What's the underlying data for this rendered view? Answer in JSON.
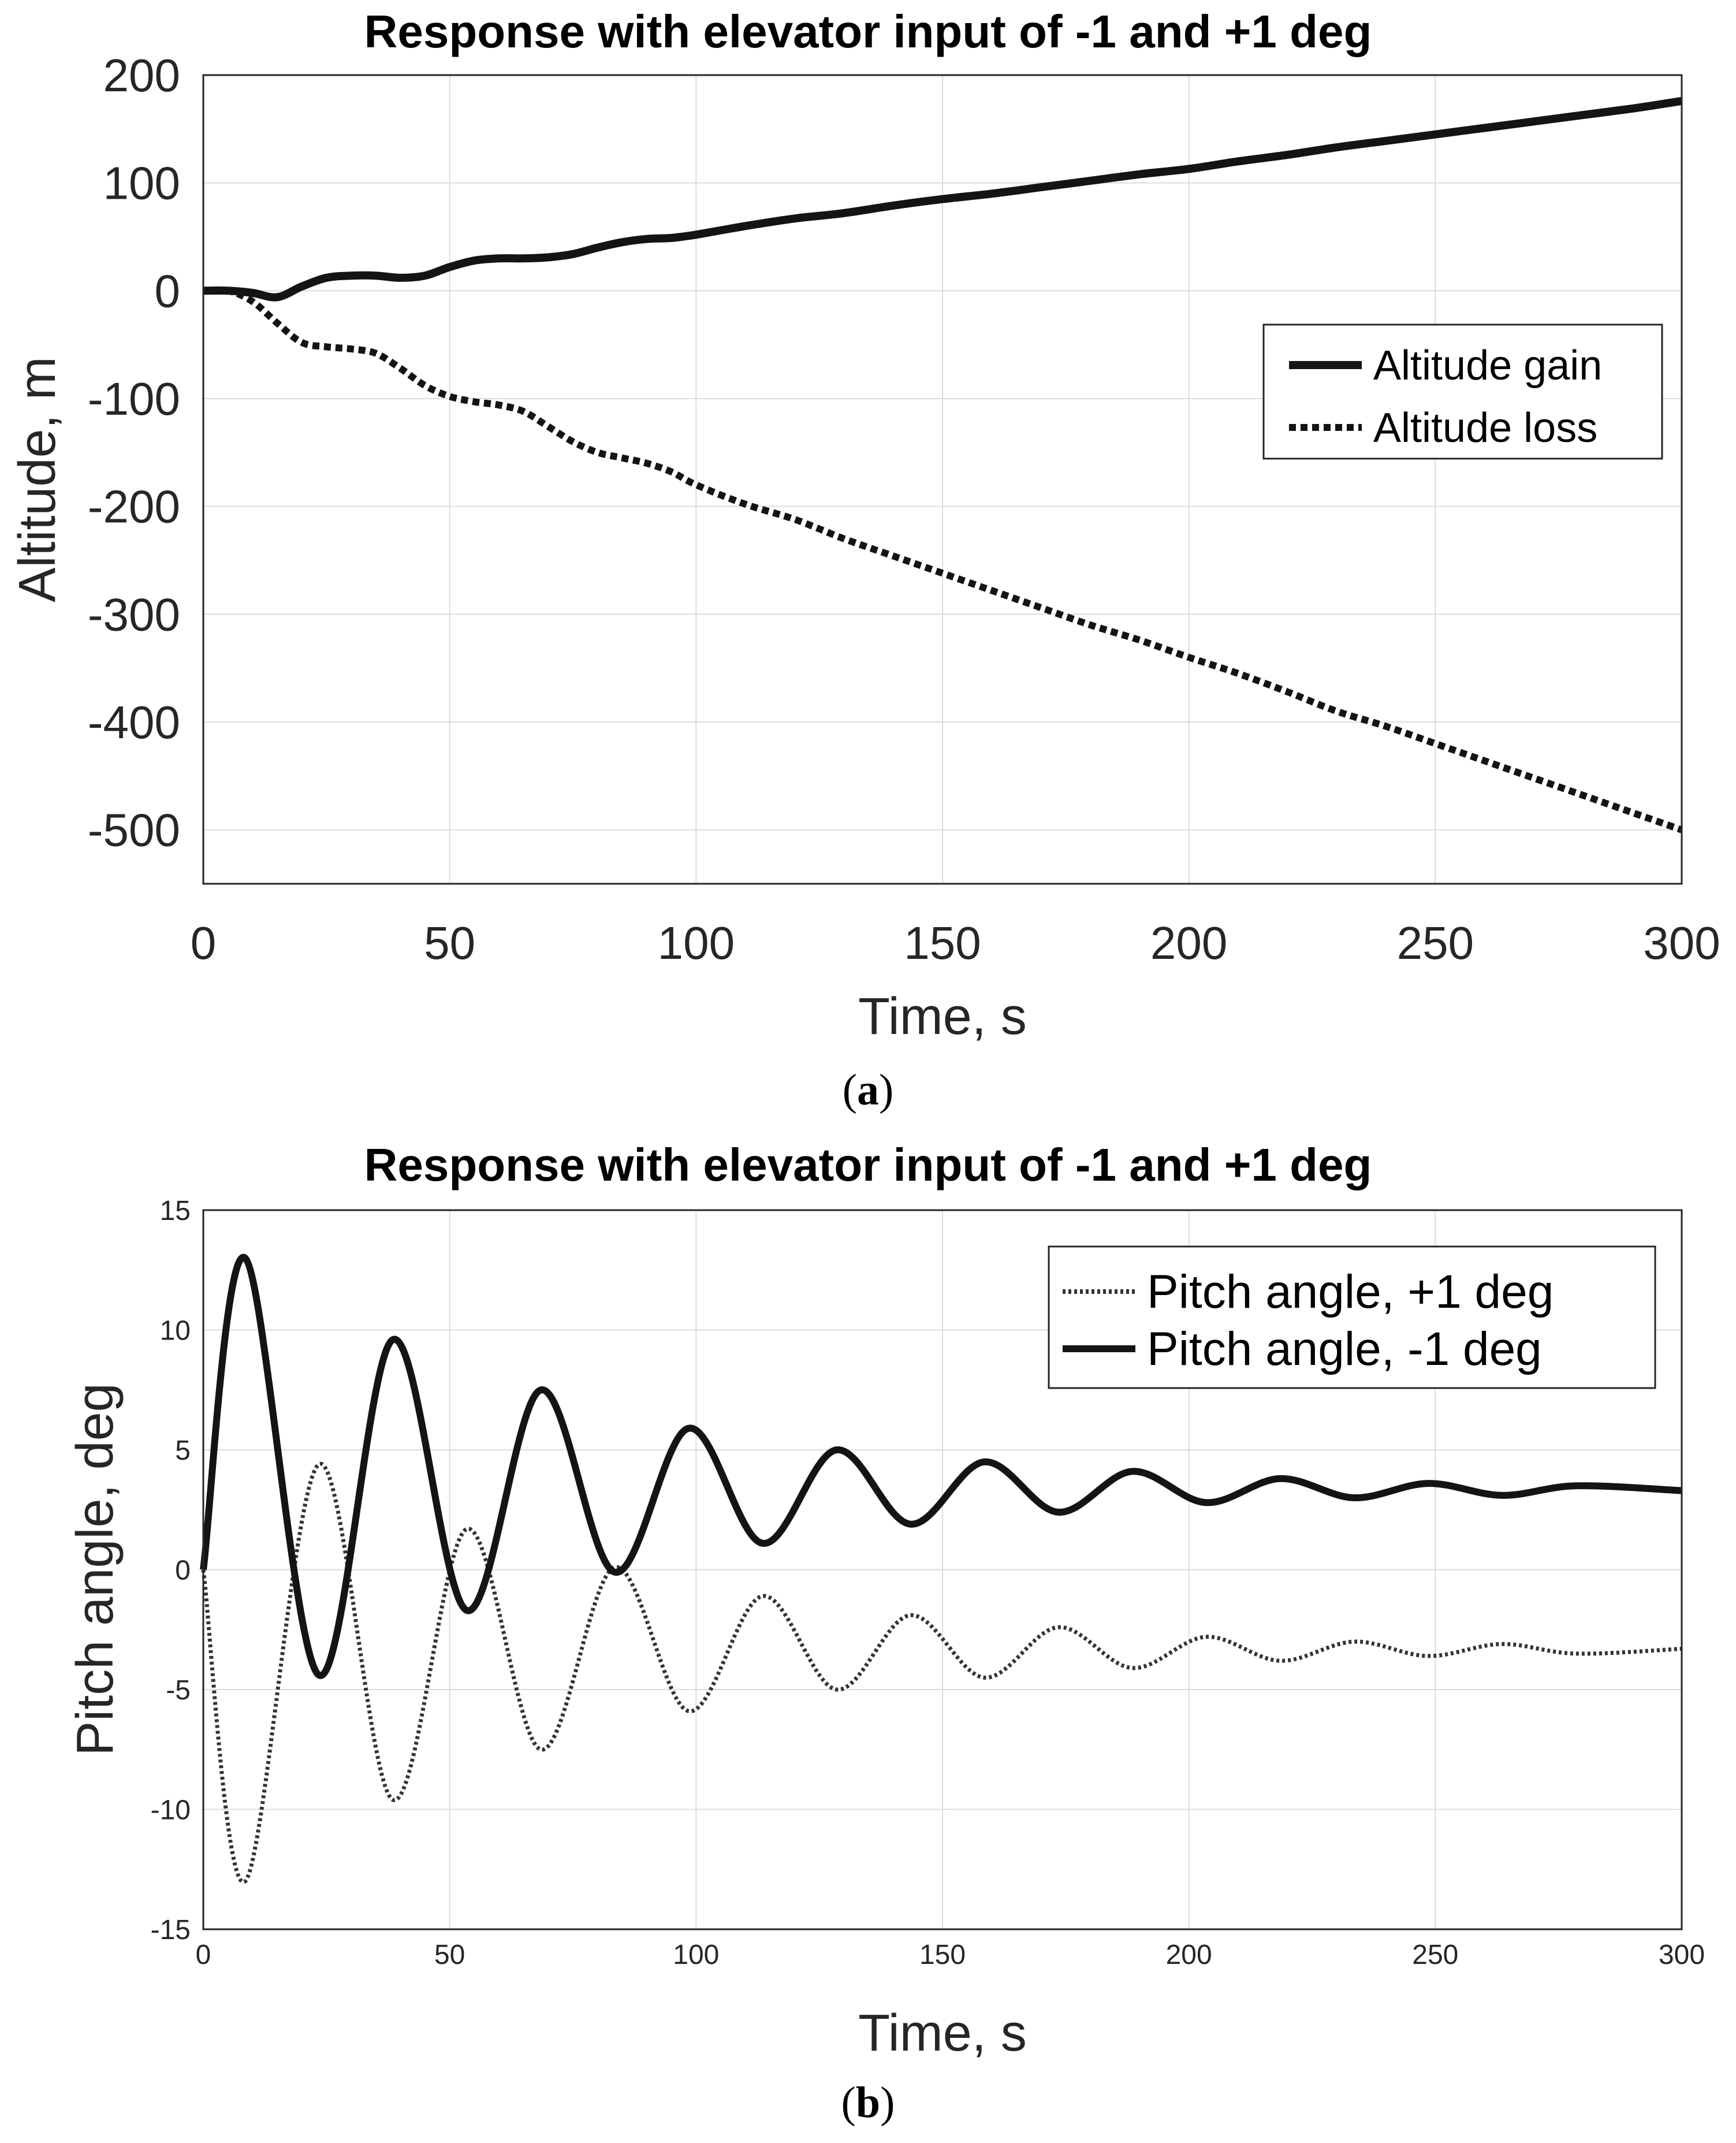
{
  "chart_data": [
    {
      "type": "line",
      "caption_letter": "a",
      "title": "Response with elevator input of -1 and +1 deg",
      "xlabel": "Time, s",
      "ylabel": "Altitude, m",
      "xlim": [
        0,
        300
      ],
      "ylim": [
        -550,
        200
      ],
      "xticks": [
        "0",
        "50",
        "100",
        "150",
        "200",
        "250",
        "300"
      ],
      "yticks": [
        "200",
        "100",
        "0",
        "-100",
        "-200",
        "-300",
        "-400",
        "-500"
      ],
      "grid": true,
      "legend_position": "upper-right",
      "series": [
        {
          "name": "Altitude gain",
          "style": "solid",
          "x": [
            0,
            5,
            10,
            15,
            20,
            25,
            30,
            35,
            40,
            45,
            50,
            55,
            60,
            65,
            70,
            75,
            80,
            85,
            90,
            95,
            100,
            110,
            120,
            130,
            140,
            150,
            160,
            170,
            180,
            190,
            200,
            210,
            220,
            230,
            240,
            250,
            260,
            270,
            280,
            290,
            300
          ],
          "y": [
            0,
            0,
            -2,
            -6,
            4,
            12,
            14,
            14,
            12,
            14,
            22,
            28,
            30,
            30,
            31,
            34,
            40,
            45,
            48,
            49,
            52,
            60,
            67,
            72,
            79,
            85,
            90,
            96,
            102,
            108,
            113,
            120,
            126,
            133,
            139,
            145,
            151,
            157,
            163,
            169,
            176
          ]
        },
        {
          "name": "Altitude loss",
          "style": "dotted",
          "x": [
            0,
            5,
            10,
            15,
            20,
            25,
            30,
            35,
            40,
            45,
            50,
            55,
            60,
            65,
            70,
            75,
            80,
            85,
            90,
            95,
            100,
            110,
            120,
            130,
            140,
            150,
            160,
            170,
            180,
            190,
            200,
            210,
            220,
            230,
            240,
            250,
            260,
            270,
            280,
            290,
            300
          ],
          "y": [
            0,
            0,
            -10,
            -30,
            -48,
            -52,
            -54,
            -58,
            -72,
            -88,
            -98,
            -103,
            -106,
            -112,
            -126,
            -140,
            -150,
            -155,
            -160,
            -168,
            -180,
            -198,
            -212,
            -230,
            -246,
            -262,
            -278,
            -294,
            -310,
            -324,
            -340,
            -355,
            -372,
            -390,
            -404,
            -420,
            -436,
            -452,
            -468,
            -484,
            -500
          ]
        }
      ]
    },
    {
      "type": "line",
      "caption_letter": "b",
      "title": "Response with elevator input of -1 and +1 deg",
      "xlabel": "Time, s",
      "ylabel": "Pitch angle, deg",
      "xlim": [
        0,
        300
      ],
      "ylim": [
        -15,
        15
      ],
      "xticks": [
        "0",
        "50",
        "100",
        "150",
        "200",
        "250",
        "300"
      ],
      "yticks": [
        "15",
        "10",
        "5",
        "0",
        "-5",
        "-10",
        "-15"
      ],
      "grid": true,
      "legend_position": "upper-right",
      "series": [
        {
          "name": "Pitch angle, +1 deg",
          "style": "dotted",
          "x": [
            0,
            8.5,
            23.5,
            38.5,
            53.5,
            68.5,
            83.5,
            98.5,
            113.5,
            128.5,
            143.5,
            158.5,
            173.5,
            188.5,
            203.5,
            218.5,
            233.5,
            248.5,
            263.5,
            278.5,
            300
          ],
          "y": [
            0,
            -13,
            4.4,
            -9.6,
            1.7,
            -7.5,
            0.1,
            -5.9,
            -1.1,
            -5.0,
            -1.9,
            -4.5,
            -2.4,
            -4.1,
            -2.8,
            -3.8,
            -3.0,
            -3.6,
            -3.1,
            -3.5,
            -3.3
          ]
        },
        {
          "name": "Pitch angle, -1 deg",
          "style": "solid",
          "x": [
            0,
            8.5,
            23.5,
            38.5,
            53.5,
            68.5,
            83.5,
            98.5,
            113.5,
            128.5,
            143.5,
            158.5,
            173.5,
            188.5,
            203.5,
            218.5,
            233.5,
            248.5,
            263.5,
            278.5,
            300
          ],
          "y": [
            0,
            13,
            -4.4,
            9.6,
            -1.7,
            7.5,
            -0.1,
            5.9,
            1.1,
            5.0,
            1.9,
            4.5,
            2.4,
            4.1,
            2.8,
            3.8,
            3.0,
            3.6,
            3.1,
            3.5,
            3.3
          ]
        }
      ]
    }
  ]
}
